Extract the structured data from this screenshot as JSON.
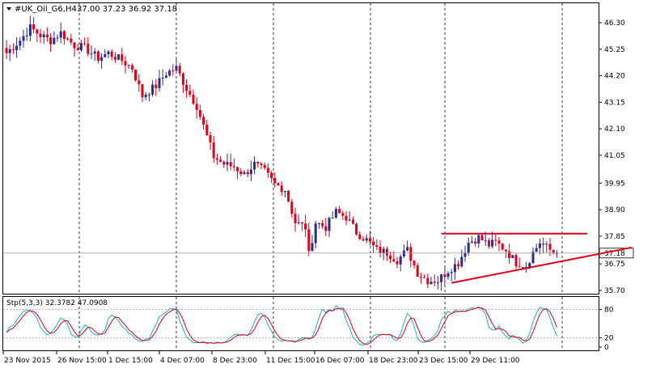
{
  "header": {
    "symbol_label": "#UK_Oil_G6,H4",
    "ohlc": "37.00 37.23 36.92 37.18"
  },
  "indicator": {
    "label": "Stp(5,3,3) 32.3782 47.0908",
    "levels": [
      "80",
      "20",
      "0"
    ],
    "upper": 80,
    "lower": 20
  },
  "colors": {
    "bull_candle": "#2b2b8f",
    "bear_candle": "#e0001a",
    "trendline": "#e0001a",
    "stoch_main": "#20b2c8",
    "stoch_signal": "#e0001a",
    "price_box": "#ffffff"
  },
  "chart_data": {
    "type": "candlestick",
    "y_ticks": [
      "46.30",
      "45.25",
      "44.20",
      "43.15",
      "42.10",
      "41.05",
      "39.95",
      "38.90",
      "37.85",
      "36.75",
      "35.70"
    ],
    "ylim": [
      35.7,
      46.65
    ],
    "current_price": "37.18",
    "x_tick_labels": [
      "23 Nov 2015",
      "26 Nov 15:00",
      "1 Dec 15:00",
      "4 Dec 07:00",
      "8 Dec 23:00",
      "11 Dec 15:00",
      "16 Dec 07:00",
      "18 Dec 23:00",
      "23 Dec 15:00",
      "29 Dec 11:00"
    ],
    "anchors": [
      [
        0,
        45.1
      ],
      [
        4,
        45.6
      ],
      [
        7,
        46.1
      ],
      [
        10,
        45.8
      ],
      [
        13,
        45.6
      ],
      [
        16,
        45.9
      ],
      [
        20,
        45.4
      ],
      [
        23,
        45.3
      ],
      [
        27,
        44.9
      ],
      [
        30,
        45.1
      ],
      [
        34,
        44.8
      ],
      [
        37,
        44.5
      ],
      [
        40,
        43.4
      ],
      [
        44,
        43.8
      ],
      [
        47,
        44.3
      ],
      [
        50,
        44.5
      ],
      [
        53,
        43.7
      ],
      [
        56,
        43.0
      ],
      [
        58,
        42.2
      ],
      [
        61,
        41.0
      ],
      [
        64,
        40.7
      ],
      [
        67,
        40.6
      ],
      [
        70,
        40.3
      ],
      [
        73,
        40.7
      ],
      [
        76,
        40.4
      ],
      [
        79,
        39.9
      ],
      [
        82,
        39.7
      ],
      [
        85,
        38.4
      ],
      [
        88,
        38.2
      ],
      [
        89,
        37.1
      ],
      [
        91,
        38.4
      ],
      [
        94,
        38.2
      ],
      [
        97,
        38.8
      ],
      [
        100,
        38.6
      ],
      [
        103,
        38.0
      ],
      [
        106,
        37.7
      ],
      [
        109,
        37.3
      ],
      [
        112,
        37.2
      ],
      [
        115,
        36.9
      ],
      [
        118,
        37.3
      ],
      [
        121,
        36.4
      ],
      [
        124,
        36.1
      ],
      [
        127,
        36.1
      ],
      [
        130,
        36.5
      ],
      [
        133,
        36.8
      ],
      [
        136,
        37.6
      ],
      [
        139,
        37.8
      ],
      [
        142,
        37.5
      ],
      [
        144,
        37.6
      ],
      [
        147,
        37.3
      ],
      [
        150,
        36.8
      ],
      [
        153,
        36.7
      ],
      [
        155,
        37.2
      ],
      [
        157,
        37.6
      ],
      [
        160,
        37.3
      ],
      [
        162,
        37.1
      ]
    ],
    "total_bars": 163,
    "horizontal_line": {
      "price": 37.95,
      "from_bar": 128,
      "to_bar": 171
    },
    "trendline": {
      "from_bar": 131,
      "from_price": 36.0,
      "to_bar": 184,
      "to_price": 37.4
    }
  }
}
